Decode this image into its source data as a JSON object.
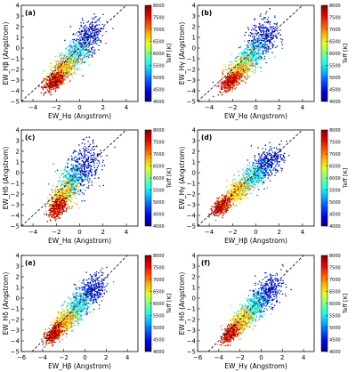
{
  "chart_data": [
    {
      "type": "scatter",
      "panel_label": "(a)",
      "xlabel": "EW_Hα (Angstrom)",
      "ylabel": "EW_Hβ (Angstrom)",
      "xlim": [
        -5,
        5
      ],
      "ylim": [
        -5,
        4
      ],
      "xticks": [
        -4,
        -2,
        0,
        2,
        4
      ],
      "yticks": [
        -5,
        -4,
        -3,
        -2,
        -1,
        0,
        1,
        2,
        3,
        4
      ],
      "reference_line": "y = x",
      "colorbar": {
        "label": "Teff [K]",
        "min": 4000,
        "max": 8000,
        "ticks": [
          4000,
          4500,
          5000,
          5500,
          6000,
          6500,
          7000,
          7500,
          8000
        ]
      },
      "clusters": [
        {
          "teff": 4300,
          "x_center": 0.6,
          "y_center": 1.0,
          "x_spread": 0.9,
          "y_spread": 1.1
        },
        {
          "teff": 5500,
          "x_center": -0.6,
          "y_center": -0.8,
          "x_spread": 0.9,
          "y_spread": 0.9
        },
        {
          "teff": 6700,
          "x_center": -1.5,
          "y_center": -2.0,
          "x_spread": 0.8,
          "y_spread": 0.7
        },
        {
          "teff": 7700,
          "x_center": -2.2,
          "y_center": -3.1,
          "x_spread": 0.6,
          "y_spread": 0.5
        }
      ]
    },
    {
      "type": "scatter",
      "panel_label": "(b)",
      "xlabel": "EW_Hα (Angstrom)",
      "ylabel": "EW_Hγ (Angstrom)",
      "xlim": [
        -5,
        5
      ],
      "ylim": [
        -5,
        4
      ],
      "xticks": [
        -4,
        -2,
        0,
        2,
        4
      ],
      "yticks": [
        -5,
        -4,
        -3,
        -2,
        -1,
        0,
        1,
        2,
        3,
        4
      ],
      "reference_line": "y = x",
      "colorbar": {
        "label": "Teff [K]",
        "min": 4000,
        "max": 8000,
        "ticks": [
          4000,
          4500,
          5000,
          5500,
          6000,
          6500,
          7000,
          7500,
          8000
        ]
      },
      "clusters": [
        {
          "teff": 4300,
          "x_center": 0.6,
          "y_center": 1.0,
          "x_spread": 0.9,
          "y_spread": 1.2
        },
        {
          "teff": 5500,
          "x_center": -0.6,
          "y_center": -0.8,
          "x_spread": 0.9,
          "y_spread": 0.9
        },
        {
          "teff": 6700,
          "x_center": -1.5,
          "y_center": -2.0,
          "x_spread": 0.8,
          "y_spread": 0.7
        },
        {
          "teff": 7700,
          "x_center": -2.2,
          "y_center": -3.1,
          "x_spread": 0.6,
          "y_spread": 0.5
        }
      ]
    },
    {
      "type": "scatter",
      "panel_label": "(c)",
      "xlabel": "EW_Hα (Angstrom)",
      "ylabel": "EW_Hδ (Angstrom)",
      "xlim": [
        -5,
        5
      ],
      "ylim": [
        -5,
        4
      ],
      "xticks": [
        -4,
        -2,
        0,
        2,
        4
      ],
      "yticks": [
        -5,
        -4,
        -3,
        -2,
        -1,
        0,
        1,
        2,
        3,
        4
      ],
      "reference_line": "y = x",
      "colorbar": {
        "label": "Teff [K]",
        "min": 4000,
        "max": 8000,
        "ticks": [
          4000,
          4500,
          5000,
          5500,
          6000,
          6500,
          7000,
          7500,
          8000
        ]
      },
      "clusters": [
        {
          "teff": 4300,
          "x_center": 0.3,
          "y_center": 0.6,
          "x_spread": 1.0,
          "y_spread": 1.4
        },
        {
          "teff": 5500,
          "x_center": -0.9,
          "y_center": -1.0,
          "x_spread": 0.8,
          "y_spread": 1.1
        },
        {
          "teff": 6700,
          "x_center": -1.5,
          "y_center": -2.2,
          "x_spread": 0.7,
          "y_spread": 0.8
        },
        {
          "teff": 7700,
          "x_center": -2.0,
          "y_center": -3.3,
          "x_spread": 0.5,
          "y_spread": 0.6
        }
      ]
    },
    {
      "type": "scatter",
      "panel_label": "(d)",
      "xlabel": "EW_Hβ (Angstrom)",
      "ylabel": "EW_Hγ (Angstrom)",
      "xlim": [
        -5,
        5
      ],
      "ylim": [
        -5,
        4
      ],
      "xticks": [
        -4,
        -2,
        0,
        2,
        4
      ],
      "yticks": [
        -5,
        -4,
        -3,
        -2,
        -1,
        0,
        1,
        2,
        3,
        4
      ],
      "reference_line": "y = x",
      "colorbar": {
        "label": "Teff [K]",
        "min": 4000,
        "max": 8000,
        "ticks": [
          4000,
          4500,
          5000,
          5500,
          6000,
          6500,
          7000,
          7500,
          8000
        ]
      },
      "clusters": [
        {
          "teff": 4300,
          "x_center": 0.9,
          "y_center": 0.9,
          "x_spread": 0.9,
          "y_spread": 0.9
        },
        {
          "teff": 5500,
          "x_center": -0.3,
          "y_center": -0.4,
          "x_spread": 0.8,
          "y_spread": 0.8
        },
        {
          "teff": 6700,
          "x_center": -1.7,
          "y_center": -1.8,
          "x_spread": 0.7,
          "y_spread": 0.7
        },
        {
          "teff": 7700,
          "x_center": -3.0,
          "y_center": -3.1,
          "x_spread": 0.5,
          "y_spread": 0.5
        }
      ]
    },
    {
      "type": "scatter",
      "panel_label": "(e)",
      "xlabel": "EW_Hβ (Angstrom)",
      "ylabel": "EW_Hδ (Angstrom)",
      "xlim": [
        -6,
        5
      ],
      "ylim": [
        -5,
        4
      ],
      "xticks": [
        -6,
        -4,
        -2,
        0,
        2,
        4
      ],
      "yticks": [
        -5,
        -4,
        -3,
        -2,
        -1,
        0,
        1,
        2,
        3,
        4
      ],
      "reference_line": "y = x",
      "colorbar": {
        "label": "Teff [K]",
        "min": 4000,
        "max": 8000,
        "ticks": [
          4000,
          4500,
          5000,
          5500,
          6000,
          6500,
          7000,
          7500,
          8000
        ]
      },
      "clusters": [
        {
          "teff": 4300,
          "x_center": 0.5,
          "y_center": 0.6,
          "x_spread": 1.0,
          "y_spread": 1.0
        },
        {
          "teff": 5500,
          "x_center": -0.8,
          "y_center": -0.9,
          "x_spread": 0.8,
          "y_spread": 0.9
        },
        {
          "teff": 6700,
          "x_center": -2.0,
          "y_center": -2.2,
          "x_spread": 0.7,
          "y_spread": 0.7
        },
        {
          "teff": 7700,
          "x_center": -3.0,
          "y_center": -3.3,
          "x_spread": 0.5,
          "y_spread": 0.5
        }
      ]
    },
    {
      "type": "scatter",
      "panel_label": "(f)",
      "xlabel": "EW_Hγ (Angstrom)",
      "ylabel": "EW_Hδ (Angstrom)",
      "xlim": [
        -6,
        5
      ],
      "ylim": [
        -5,
        4
      ],
      "xticks": [
        -6,
        -4,
        -2,
        0,
        2,
        4
      ],
      "yticks": [
        -5,
        -4,
        -3,
        -2,
        -1,
        0,
        1,
        2,
        3,
        4
      ],
      "reference_line": "y = x",
      "colorbar": {
        "label": "Teff [K]",
        "min": 4000,
        "max": 8000,
        "ticks": [
          4000,
          4500,
          5000,
          5500,
          6000,
          6500,
          7000,
          7500,
          8000
        ]
      },
      "clusters": [
        {
          "teff": 4300,
          "x_center": 0.5,
          "y_center": 0.6,
          "x_spread": 1.0,
          "y_spread": 1.0
        },
        {
          "teff": 5500,
          "x_center": -0.8,
          "y_center": -0.9,
          "x_spread": 0.8,
          "y_spread": 0.9
        },
        {
          "teff": 6700,
          "x_center": -2.0,
          "y_center": -2.2,
          "x_spread": 0.7,
          "y_spread": 0.7
        },
        {
          "teff": 7700,
          "x_center": -3.0,
          "y_center": -3.3,
          "x_spread": 0.5,
          "y_spread": 0.5
        }
      ]
    }
  ]
}
